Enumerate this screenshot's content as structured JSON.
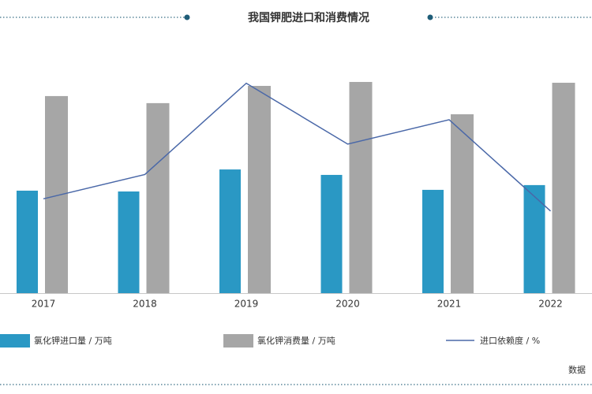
{
  "chart_data": {
    "type": "bar-line",
    "title": "我国钾肥进口和消费情况",
    "categories": [
      "2017",
      "2018",
      "2019",
      "2020",
      "2021",
      "2022"
    ],
    "ylim": [
      0,
      1925
    ],
    "y2lim": [
      33.5,
      76.5
    ],
    "series": [
      {
        "name": "氯化钾进口量 / 万吨",
        "color": "#2a98c4",
        "type": "bar",
        "values": [
          754,
          748,
          910,
          870,
          760,
          795
        ]
      },
      {
        "name": "氯化钾消费量 / 万吨",
        "color": "#a6a6a6",
        "type": "bar",
        "values": [
          1450,
          1398,
          1525,
          1554,
          1316,
          1548
        ]
      },
      {
        "name": "进口依赖度 / %",
        "color": "#4a68a8",
        "type": "line",
        "axis": "y2",
        "values": [
          49,
          53,
          68,
          58,
          62,
          47
        ]
      }
    ],
    "source": "数据"
  }
}
